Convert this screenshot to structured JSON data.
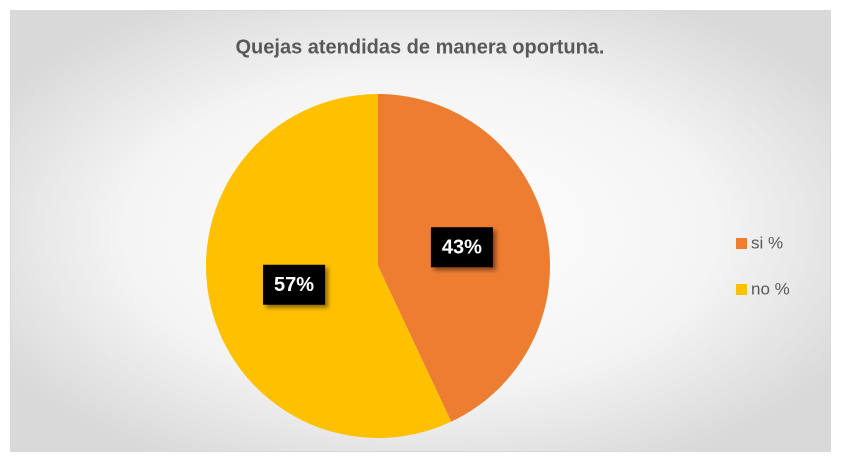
{
  "chart_data": {
    "type": "pie",
    "title": "Quejas atendidas de manera oportuna.",
    "categories": [
      "si %",
      "no %"
    ],
    "values": [
      43,
      57
    ],
    "value_labels": [
      "43%",
      "57%"
    ],
    "colors": [
      "#ed7d31",
      "#ffc000"
    ],
    "legend": "right"
  }
}
